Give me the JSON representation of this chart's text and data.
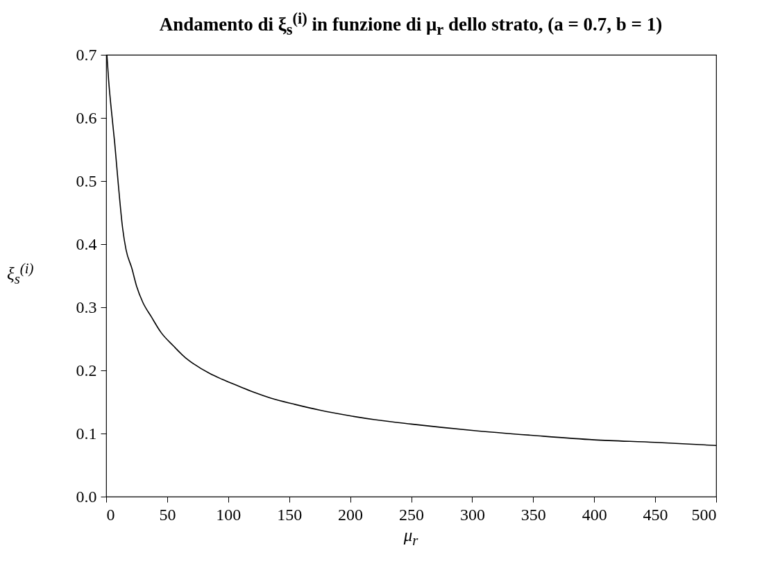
{
  "chart_data": {
    "type": "line",
    "title": "Andamento di ξ$_{s}$$^{(i)}$ in funzione di μ$_{r}$ dello strato, (a = 0.7, b = 1)",
    "xlabel": "μ$_{r}$",
    "ylabel": "ξ$_{s}$$^{(i)}$",
    "x": [
      0.6,
      2,
      4.9,
      7,
      9.7,
      13.5,
      16.3,
      21,
      25,
      30,
      37,
      45,
      55,
      65,
      72,
      85,
      95,
      110,
      121.5,
      135,
      155,
      175,
      200,
      220,
      250,
      300,
      350,
      400,
      450,
      500
    ],
    "series": [
      {
        "color": "#000000",
        "values": [
          0.7,
          0.66,
          0.6,
          0.56,
          0.5,
          0.425,
          0.391,
          0.362,
          0.333,
          0.308,
          0.285,
          0.26,
          0.239,
          0.22,
          0.21,
          0.195,
          0.186,
          0.174,
          0.165,
          0.156,
          0.146,
          0.137,
          0.128,
          0.122,
          0.115,
          0.105,
          0.097,
          0.09,
          0.086,
          0.081
        ]
      }
    ],
    "xlim": [
      0,
      500
    ],
    "ylim": [
      0,
      0.7
    ],
    "xticks": [
      0,
      50,
      100,
      150,
      200,
      250,
      300,
      350,
      400,
      450,
      500
    ],
    "yticks": [
      {
        "value": 0,
        "label": "0.0"
      },
      0.1,
      0.2,
      0.3,
      0.4,
      0.5,
      0.6,
      0.7
    ],
    "grid": false,
    "marker": "none",
    "line_style": "solid"
  }
}
